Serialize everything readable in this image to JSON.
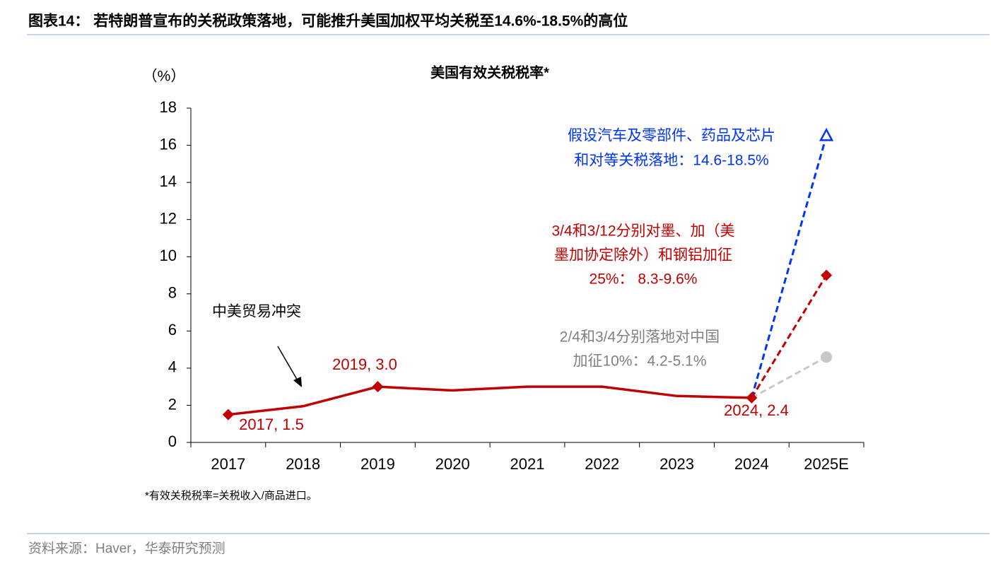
{
  "header": {
    "title": "图表14：  若特朗普宣布的关税政策落地，可能推升美国加权平均关税至14.6%-18.5%的高位"
  },
  "chart_data": {
    "type": "line",
    "title": "美国有效关税税率*",
    "y_unit": "（%）",
    "categories": [
      "2017",
      "2018",
      "2019",
      "2020",
      "2021",
      "2022",
      "2023",
      "2024",
      "2025E"
    ],
    "ylim": [
      0,
      18
    ],
    "yticks": [
      0,
      2,
      4,
      6,
      8,
      10,
      12,
      14,
      16,
      18
    ],
    "series": [
      {
        "color": "#c00000",
        "dash": false,
        "marker": "diamond",
        "values": [
          1.5,
          1.95,
          3.0,
          2.8,
          3.0,
          3.0,
          2.5,
          2.4,
          null
        ],
        "value_labels": [
          "2017, 1.5",
          null,
          "2019, 3.0",
          null,
          null,
          null,
          null,
          "2024, 2.4",
          null
        ]
      },
      {
        "color": "#0033ff",
        "dash": true,
        "marker": "triangle",
        "values": [
          null,
          null,
          null,
          null,
          null,
          null,
          null,
          2.4,
          16.5
        ],
        "annotation": [
          "假设汽车及零部件、药品及芯片",
          "和对等关税落地：14.6-18.5%"
        ]
      },
      {
        "color": "#c00000",
        "dash": true,
        "marker": "diamond",
        "values": [
          null,
          null,
          null,
          null,
          null,
          null,
          null,
          2.4,
          9.0
        ],
        "annotation": [
          "3/4和3/12分别对墨、加（美",
          "墨加协定除外）和钢铝加征",
          "25%： 8.3-9.6%"
        ]
      },
      {
        "color": "#c8c8c8",
        "dash": true,
        "marker": "circle",
        "values": [
          null,
          null,
          null,
          null,
          null,
          null,
          null,
          2.4,
          4.6
        ],
        "annotation": [
          "2/4和3/4分别落地对中国",
          "加征10%：4.2-5.1%"
        ],
        "annotation_color": "#808080"
      }
    ],
    "annotation": "中美贸易冲突",
    "footnote": "*有效关税税率=关税收入/商品进口。"
  },
  "source": "资料来源：Haver，华泰研究预测"
}
